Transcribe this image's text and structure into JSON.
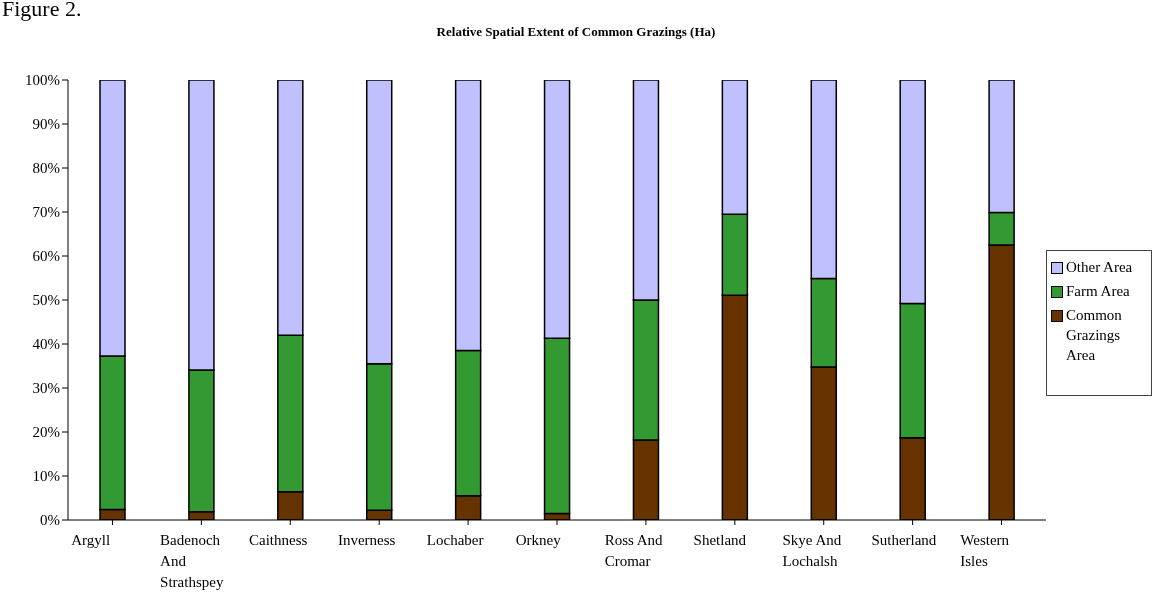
{
  "chart_data": {
    "type": "bar",
    "stacked": true,
    "title": "Relative Spatial Extent of Common Grazings (Ha)",
    "annotations": [
      "Figure 2."
    ],
    "categories": [
      "Argyll",
      "Badenoch And Strathspey",
      "Caithness",
      "Inverness",
      "Lochaber",
      "Orkney",
      "Ross And Cromar",
      "Shetland",
      "Skye And Lochalsh",
      "Sutherland",
      "Western Isles"
    ],
    "series": [
      {
        "name": "Common Grazings Area",
        "color": "#663300",
        "values": [
          2.4,
          1.9,
          6.4,
          2.2,
          5.5,
          1.5,
          18.2,
          51.1,
          34.8,
          18.7,
          62.5
        ]
      },
      {
        "name": "Farm Area",
        "color": "#339933",
        "values": [
          34.9,
          32.2,
          35.6,
          33.3,
          33.0,
          39.8,
          31.8,
          18.4,
          20.1,
          30.5,
          7.4
        ]
      },
      {
        "name": "Other Area",
        "color": "#c0c0ff",
        "values": [
          62.7,
          65.9,
          58.0,
          64.5,
          61.5,
          58.7,
          50.0,
          30.5,
          45.1,
          50.8,
          30.1
        ]
      }
    ],
    "ylim": [
      0,
      100
    ],
    "yticks": [
      {
        "value": 0,
        "label": "0%"
      },
      {
        "value": 10,
        "label": "10%"
      },
      {
        "value": 20,
        "label": "20%"
      },
      {
        "value": 30,
        "label": "30%"
      },
      {
        "value": 40,
        "label": "40%"
      },
      {
        "value": 50,
        "label": "50%"
      },
      {
        "value": 60,
        "label": "60%"
      },
      {
        "value": 70,
        "label": "70%"
      },
      {
        "value": 80,
        "label": "80%"
      },
      {
        "value": 90,
        "label": "90%"
      },
      {
        "value": 100,
        "label": "100%"
      }
    ],
    "grid": false,
    "legend": "right"
  }
}
